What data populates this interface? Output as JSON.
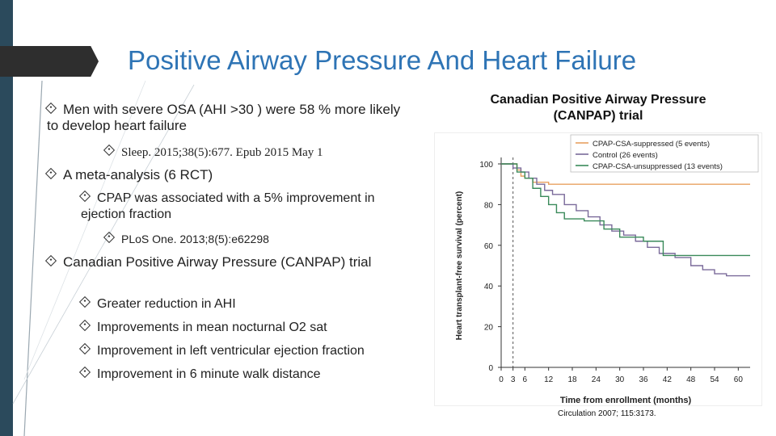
{
  "slide": {
    "title": "Positive Airway Pressure And Heart Failure",
    "bullets": [
      {
        "text": "Men with severe OSA (AHI >30 ) were 58 % more likely to develop heart failure"
      },
      {
        "text": "Sleep. 2015;38(5):677. Epub 2015 May 1"
      },
      {
        "text": "A meta-analysis (6 RCT)"
      },
      {
        "text": "CPAP was associated with a 5% improvement in ejection fraction"
      },
      {
        "text": "PLoS One. 2013;8(5):e62298"
      },
      {
        "text": "Canadian Positive Airway Pressure (CANPAP) trial"
      },
      {
        "text": "Greater reduction in AHI"
      },
      {
        "text": "Improvements in mean nocturnal O2 sat"
      },
      {
        "text": "Improvement in left ventricular ejection fraction"
      },
      {
        "text": "Improvement in 6 minute walk distance"
      }
    ],
    "chart_heading": "Canadian Positive Airway Pressure (CANPAP) trial",
    "citation": "Circulation 2007; 115:3173.",
    "colors": {
      "title": "#2e74b5",
      "sidebar": "#2b4a5c"
    }
  },
  "chart_data": {
    "type": "line",
    "title": "",
    "xlabel": "Time from enrollment (months)",
    "ylabel": "Heart transplant-free survival (percent)",
    "xticks": [
      0,
      3,
      6,
      12,
      18,
      24,
      30,
      36,
      42,
      48,
      54,
      60
    ],
    "yticks": [
      0,
      20,
      40,
      60,
      80,
      100
    ],
    "xlim": [
      0,
      63
    ],
    "ylim": [
      0,
      100
    ],
    "vline_x": 3,
    "legend_position": "top-right",
    "series": [
      {
        "name": "CPAP-CSA-suppressed (5 events)",
        "color": "#e8a060",
        "points": [
          [
            0,
            100
          ],
          [
            3,
            100
          ],
          [
            4,
            97
          ],
          [
            5,
            94
          ],
          [
            6,
            93
          ],
          [
            8,
            91
          ],
          [
            12,
            90
          ],
          [
            30,
            90
          ],
          [
            63,
            90
          ]
        ]
      },
      {
        "name": "Control (26 events)",
        "color": "#7a6a9a",
        "points": [
          [
            0,
            100
          ],
          [
            2,
            100
          ],
          [
            3,
            98
          ],
          [
            5,
            96
          ],
          [
            7,
            93
          ],
          [
            9,
            90
          ],
          [
            11,
            87
          ],
          [
            13,
            85
          ],
          [
            16,
            80
          ],
          [
            19,
            77
          ],
          [
            22,
            74
          ],
          [
            25,
            70
          ],
          [
            28,
            67
          ],
          [
            31,
            65
          ],
          [
            34,
            62
          ],
          [
            37,
            59
          ],
          [
            40,
            56
          ],
          [
            44,
            54
          ],
          [
            48,
            50
          ],
          [
            51,
            48
          ],
          [
            54,
            46
          ],
          [
            56,
            46
          ],
          [
            57,
            45
          ],
          [
            63,
            45
          ]
        ]
      },
      {
        "name": "CPAP-CSA-unsuppressed (13 events)",
        "color": "#3a8a5a",
        "points": [
          [
            0,
            100
          ],
          [
            3,
            100
          ],
          [
            4,
            96
          ],
          [
            6,
            93
          ],
          [
            8,
            88
          ],
          [
            10,
            84
          ],
          [
            12,
            80
          ],
          [
            14,
            76
          ],
          [
            16,
            73
          ],
          [
            18,
            73
          ],
          [
            21,
            72
          ],
          [
            24,
            72
          ],
          [
            26,
            68
          ],
          [
            30,
            64
          ],
          [
            36,
            62
          ],
          [
            41,
            55
          ],
          [
            54,
            55
          ],
          [
            63,
            55
          ]
        ]
      }
    ]
  }
}
